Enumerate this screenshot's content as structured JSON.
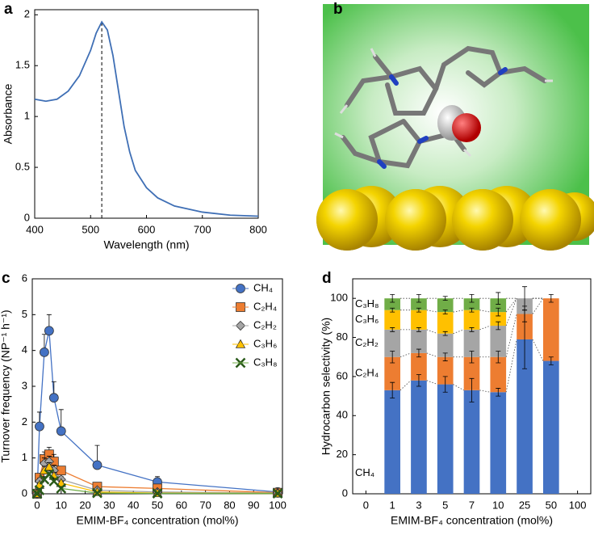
{
  "image_panel": {
    "panel_label": "b"
  },
  "chart_data": [
    {
      "type": "line",
      "panel_label": "a",
      "x_label": "Wavelength (nm)",
      "y_label": "Absorbance",
      "x": [
        400,
        420,
        440,
        460,
        480,
        500,
        510,
        520,
        530,
        540,
        550,
        560,
        570,
        580,
        600,
        620,
        650,
        700,
        750,
        800
      ],
      "values": [
        1.17,
        1.15,
        1.17,
        1.25,
        1.4,
        1.65,
        1.82,
        1.93,
        1.85,
        1.6,
        1.25,
        0.9,
        0.65,
        0.47,
        0.3,
        0.2,
        0.12,
        0.06,
        0.03,
        0.02
      ],
      "color": "#3f6fb5",
      "reference_line_x": 520,
      "xlim": [
        400,
        800
      ],
      "xticks": [
        400,
        500,
        600,
        700,
        800
      ],
      "ylim": [
        0,
        2.05
      ],
      "yticks": [
        0,
        0.5,
        1,
        1.5,
        2
      ]
    },
    {
      "type": "line",
      "panel_label": "c",
      "x_label": "EMIM-BF₄ concentration (mol%)",
      "y_label": "Turnover frequency (NP⁻¹ h⁻¹)",
      "x": [
        0,
        1,
        3,
        5,
        7,
        10,
        25,
        50,
        100
      ],
      "series": [
        {
          "name": "CH₄",
          "color": "#4472c4",
          "marker": "circle",
          "values": [
            0,
            1.88,
            3.95,
            4.55,
            2.68,
            1.75,
            0.8,
            0.33,
            0.05
          ],
          "errors": [
            0,
            0.4,
            0.5,
            0.45,
            0.45,
            0.6,
            0.55,
            0.15,
            0.03
          ]
        },
        {
          "name": "C₂H₄",
          "color": "#ed7d31",
          "marker": "square",
          "values": [
            0,
            0.45,
            0.97,
            1.1,
            0.9,
            0.65,
            0.2,
            0.15,
            0.03
          ],
          "errors": [
            0,
            0.1,
            0.2,
            0.2,
            0.2,
            0.1,
            0.1,
            0.05,
            0.02
          ]
        },
        {
          "name": "C₂H₂",
          "color": "#a5a5a5",
          "marker": "diamond",
          "values": [
            0,
            0.35,
            0.85,
            0.9,
            0.65,
            0.4,
            0.1,
            0.05,
            0.02
          ],
          "errors": [
            0,
            0.08,
            0.15,
            0.15,
            0.15,
            0.08,
            0.05,
            0.03,
            0.01
          ]
        },
        {
          "name": "C₃H₆",
          "color": "#ffc000",
          "marker": "triangle",
          "values": [
            0,
            0.25,
            0.65,
            0.75,
            0.5,
            0.3,
            0.05,
            0.02,
            0.01
          ],
          "errors": [
            0,
            0.06,
            0.12,
            0.12,
            0.1,
            0.06,
            0.03,
            0.02,
            0.01
          ]
        },
        {
          "name": "C₃H₈",
          "color": "#70ad47",
          "marker": "cross",
          "values": [
            0,
            0.1,
            0.4,
            0.55,
            0.35,
            0.15,
            0.02,
            0.01,
            0.01
          ],
          "errors": [
            0,
            0.04,
            0.08,
            0.1,
            0.08,
            0.05,
            0.02,
            0.01,
            0.01
          ]
        }
      ],
      "xlim": [
        -2,
        102
      ],
      "xticks": [
        0,
        10,
        20,
        30,
        40,
        50,
        60,
        70,
        80,
        90,
        100
      ],
      "ylim": [
        0,
        6
      ],
      "yticks": [
        0,
        1,
        2,
        3,
        4,
        5,
        6
      ]
    },
    {
      "type": "stacked_bar",
      "panel_label": "d",
      "x_label": "EMIM-BF₄ concentration (mol%)",
      "y_label": "Hydrocarbon selectivity (%)",
      "categories": [
        "0",
        "1",
        "3",
        "5",
        "7",
        "10",
        "25",
        "50",
        "100"
      ],
      "series": [
        {
          "name": "CH₄",
          "color": "#4472c4",
          "values": [
            null,
            53,
            58,
            56,
            53,
            52,
            79,
            68,
            null
          ],
          "errors": [
            null,
            4,
            3,
            4,
            6,
            2,
            15,
            2,
            null
          ]
        },
        {
          "name": "C₂H₄",
          "color": "#ed7d31",
          "values": [
            null,
            17,
            14,
            14,
            17,
            18,
            13,
            32,
            null
          ],
          "errors": [
            null,
            3,
            2,
            2,
            3,
            3,
            4,
            2,
            null
          ]
        },
        {
          "name": "C₂H₂",
          "color": "#a5a5a5",
          "values": [
            null,
            14,
            12,
            12,
            14,
            16,
            8,
            0,
            null
          ],
          "errors": [
            null,
            1,
            1,
            1,
            1,
            2,
            6,
            0,
            null
          ]
        },
        {
          "name": "C₃H₆",
          "color": "#ffc000",
          "values": [
            null,
            10,
            10,
            11,
            10,
            7,
            0,
            0,
            null
          ],
          "errors": [
            null,
            1,
            1,
            1,
            1,
            2,
            0,
            0,
            null
          ]
        },
        {
          "name": "C₃H₈",
          "color": "#70ad47",
          "values": [
            null,
            6,
            6,
            7,
            6,
            7,
            0,
            0,
            null
          ],
          "errors": [
            null,
            2,
            2,
            1,
            2,
            3,
            0,
            0,
            null
          ]
        }
      ],
      "ylim": [
        0,
        110
      ],
      "yticks": [
        0,
        20,
        40,
        60,
        80,
        100
      ]
    }
  ]
}
